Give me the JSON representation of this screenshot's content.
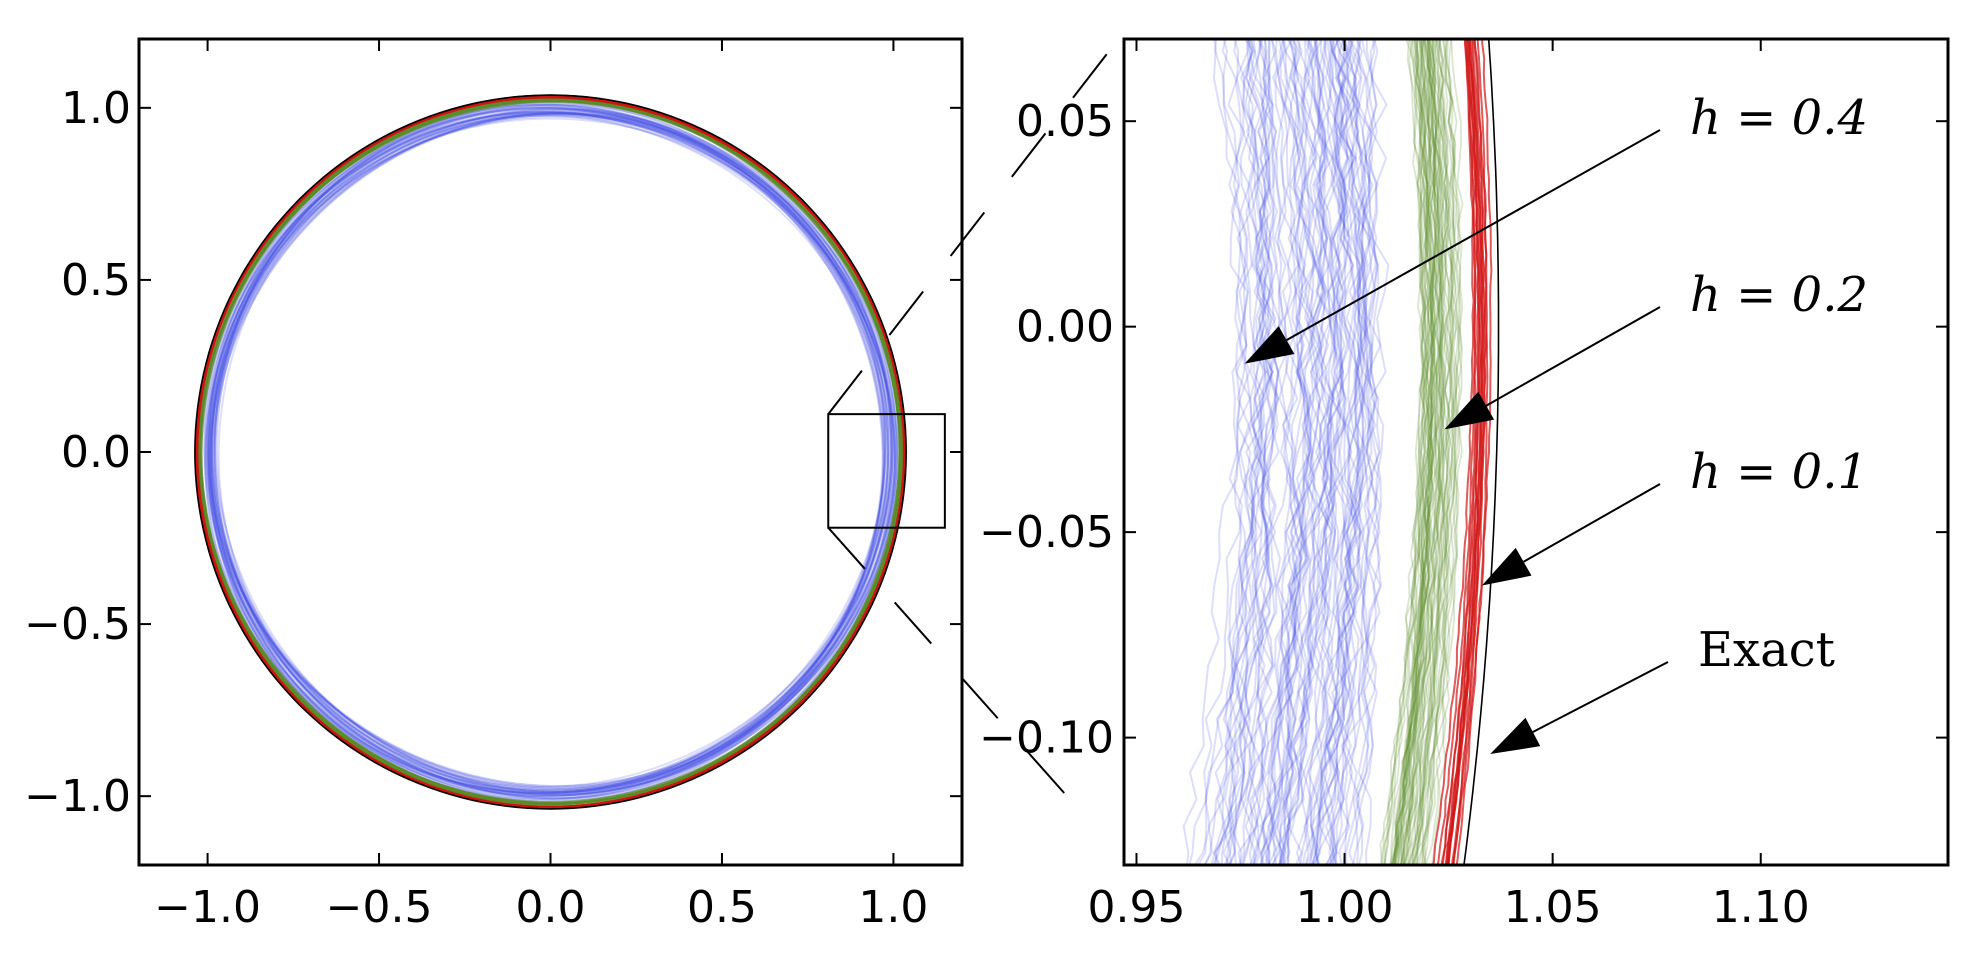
{
  "colors": {
    "h04": "#3c46e6",
    "h02": "#5a8c28",
    "h01": "#d21414",
    "exact": "#000000"
  },
  "chart_data": [
    {
      "type": "line",
      "title": "",
      "xlabel": "",
      "ylabel": "",
      "xlim": [
        -1.2,
        1.2
      ],
      "ylim": [
        -1.2,
        1.2
      ],
      "xticks": [
        "−1.0",
        "−0.5",
        "0.0",
        "0.5",
        "1.0"
      ],
      "yticks": [
        "1.0",
        "0.5",
        "0.0",
        "−0.5",
        "−1.0"
      ],
      "xtick_values": [
        -1.0,
        -0.5,
        0.0,
        0.5,
        1.0
      ],
      "ytick_values": [
        1.0,
        0.5,
        0.0,
        -0.5,
        -1.0
      ],
      "grid": false,
      "series": [
        {
          "key": "h04",
          "shape": "circle",
          "radius_range": [
            0.975,
            1.01
          ]
        },
        {
          "key": "h02",
          "shape": "circle",
          "radius_range": [
            1.018,
            1.028
          ]
        },
        {
          "key": "h01",
          "shape": "circle",
          "radius_range": [
            1.03,
            1.036
          ]
        },
        {
          "key": "exact",
          "shape": "circle",
          "radius": 1.037
        }
      ],
      "zoom_box": {
        "x": [
          0.81,
          1.15
        ],
        "y": [
          -0.22,
          0.11
        ]
      }
    },
    {
      "type": "line",
      "title": "",
      "xlabel": "",
      "ylabel": "",
      "xlim": [
        0.947,
        1.145
      ],
      "ylim": [
        -0.131,
        0.07
      ],
      "xticks": [
        "0.95",
        "1.00",
        "1.05",
        "1.10"
      ],
      "yticks": [
        "0.05",
        "0.00",
        "−0.05",
        "−0.10"
      ],
      "xtick_values": [
        0.95,
        1.0,
        1.05,
        1.1
      ],
      "ytick_values": [
        0.05,
        0.0,
        -0.05,
        -0.1
      ],
      "grid": false,
      "series": [
        {
          "key": "h04",
          "shape": "arc",
          "radius_range": [
            0.975,
            1.01
          ]
        },
        {
          "key": "h02",
          "shape": "arc",
          "radius_range": [
            1.018,
            1.028
          ]
        },
        {
          "key": "h01",
          "shape": "arc",
          "radius_range": [
            1.03,
            1.036
          ]
        },
        {
          "key": "exact",
          "shape": "arc",
          "radius": 1.037
        }
      ],
      "annotations": [
        {
          "text": "h = 0.4",
          "arrow_to": [
            0.976,
            -0.009
          ]
        },
        {
          "text": "h = 0.2",
          "arrow_to": [
            1.024,
            -0.025
          ]
        },
        {
          "text": "h = 0.1",
          "arrow_to": [
            1.033,
            -0.063
          ]
        },
        {
          "text": "Exact",
          "arrow_to": [
            1.035,
            -0.104
          ]
        }
      ]
    }
  ]
}
